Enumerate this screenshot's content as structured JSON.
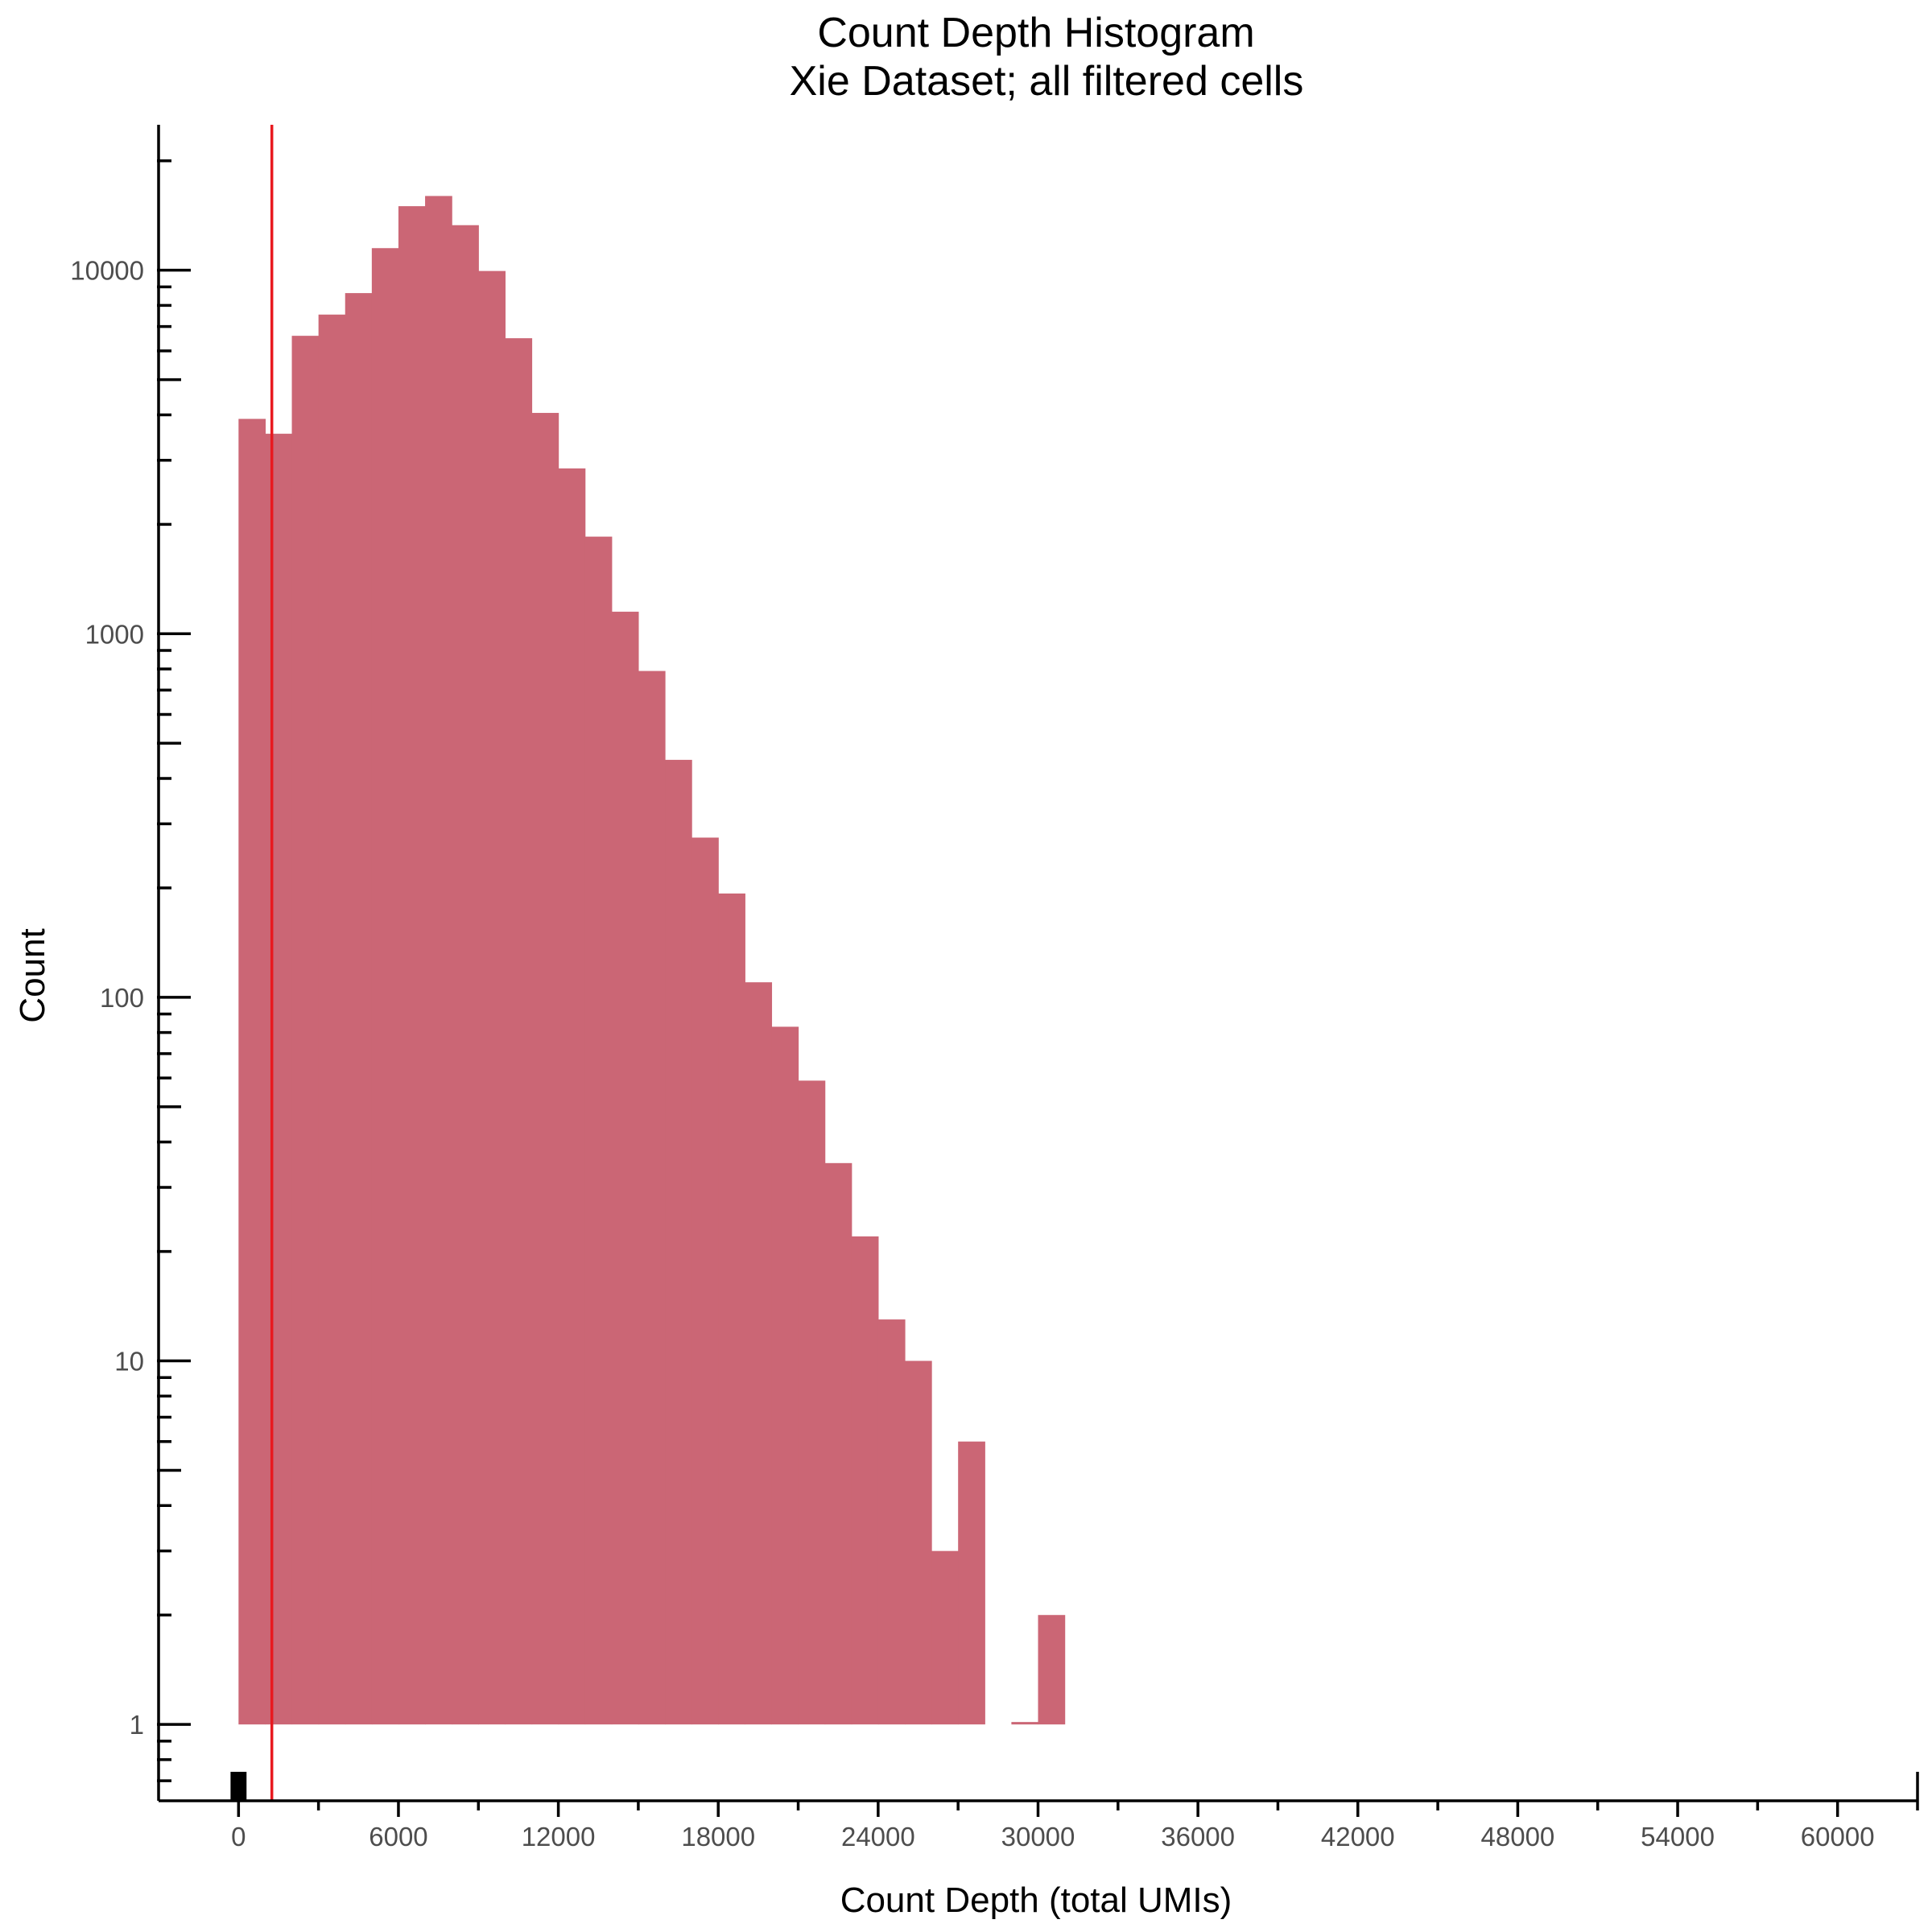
{
  "chart_data": {
    "type": "bar",
    "title": "Count Depth Histogram",
    "subtitle": "Xie Dataset; all filtered cells",
    "xlabel": "Count Depth (total UMIs)",
    "ylabel": "Count",
    "x_scale": "linear",
    "y_scale": "log10",
    "xlim": [
      -3000,
      63000
    ],
    "ylim_log10": [
      -0.21,
      4.4
    ],
    "x_ticks": [
      0,
      6000,
      12000,
      18000,
      24000,
      30000,
      36000,
      42000,
      48000,
      54000,
      60000
    ],
    "x_tick_labels": [
      "0",
      "6000",
      "12000",
      "18000",
      "24000",
      "30000",
      "36000",
      "42000",
      "48000",
      "54000",
      "60000"
    ],
    "y_ticks": [
      1,
      10,
      100,
      1000,
      10000
    ],
    "y_tick_labels": [
      "1",
      "10",
      "100",
      "1000",
      "10000"
    ],
    "bar_color": "#cb6675",
    "bin_width": 1000,
    "bins": [
      {
        "x0": 0,
        "x1": 1000,
        "count": 3900
      },
      {
        "x0": 1000,
        "x1": 2000,
        "count": 3550
      },
      {
        "x0": 2000,
        "x1": 3000,
        "count": 6600
      },
      {
        "x0": 3000,
        "x1": 4000,
        "count": 7550
      },
      {
        "x0": 4000,
        "x1": 5000,
        "count": 8650
      },
      {
        "x0": 5000,
        "x1": 6000,
        "count": 11500
      },
      {
        "x0": 6000,
        "x1": 7000,
        "count": 15000
      },
      {
        "x0": 7000,
        "x1": 8000,
        "count": 16000
      },
      {
        "x0": 8000,
        "x1": 9000,
        "count": 13300
      },
      {
        "x0": 9000,
        "x1": 10000,
        "count": 9950
      },
      {
        "x0": 10000,
        "x1": 11000,
        "count": 6500
      },
      {
        "x0": 11000,
        "x1": 12000,
        "count": 4050
      },
      {
        "x0": 12000,
        "x1": 13000,
        "count": 2850
      },
      {
        "x0": 13000,
        "x1": 14000,
        "count": 1850
      },
      {
        "x0": 14000,
        "x1": 15000,
        "count": 1150
      },
      {
        "x0": 15000,
        "x1": 16000,
        "count": 790
      },
      {
        "x0": 16000,
        "x1": 17000,
        "count": 450
      },
      {
        "x0": 17000,
        "x1": 18000,
        "count": 275
      },
      {
        "x0": 18000,
        "x1": 19000,
        "count": 193
      },
      {
        "x0": 19000,
        "x1": 20000,
        "count": 110
      },
      {
        "x0": 20000,
        "x1": 21000,
        "count": 83
      },
      {
        "x0": 21000,
        "x1": 22000,
        "count": 59
      },
      {
        "x0": 22000,
        "x1": 23000,
        "count": 35
      },
      {
        "x0": 23000,
        "x1": 24000,
        "count": 22
      },
      {
        "x0": 24000,
        "x1": 25000,
        "count": 13
      },
      {
        "x0": 25000,
        "x1": 26000,
        "count": 10
      },
      {
        "x0": 26000,
        "x1": 27000,
        "count": 3
      },
      {
        "x0": 27000,
        "x1": 28000,
        "count": 6
      },
      {
        "x0": 29000,
        "x1": 30000,
        "count": 1
      },
      {
        "x0": 30000,
        "x1": 31000,
        "count": 2
      }
    ],
    "vline": {
      "x": 1250,
      "color": "#e8191f"
    },
    "rug_marks": [
      {
        "x0": -300,
        "x1": 300,
        "color": "#000000"
      }
    ],
    "grid": false,
    "legend": "none"
  }
}
